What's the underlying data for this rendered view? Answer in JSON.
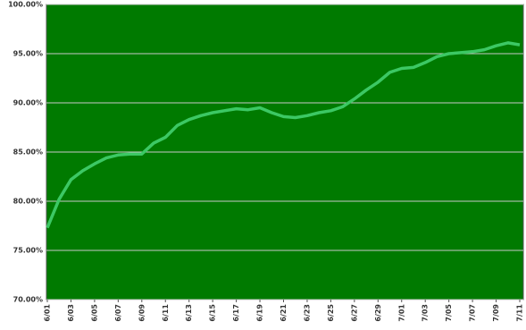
{
  "chart_data": {
    "type": "line",
    "categories": [
      "6/01",
      null,
      "6/03",
      null,
      "6/05",
      null,
      "6/07",
      null,
      "6/09",
      null,
      "6/11",
      null,
      "6/13",
      null,
      "6/15",
      null,
      "6/17",
      null,
      "6/19",
      null,
      "6/21",
      null,
      "6/23",
      null,
      "6/25",
      null,
      "6/27",
      null,
      "6/29",
      null,
      "7/01",
      null,
      "7/03",
      null,
      "7/05",
      null,
      "7/07",
      null,
      "7/09",
      null,
      "7/11"
    ],
    "series": [
      {
        "color": "#3cc864",
        "values": [
          77.3,
          80.2,
          82.2,
          83.1,
          83.8,
          84.4,
          84.7,
          84.8,
          84.8,
          85.9,
          86.5,
          87.7,
          88.3,
          88.7,
          89.0,
          89.2,
          89.4,
          89.3,
          89.5,
          89.0,
          88.6,
          88.5,
          88.7,
          89.0,
          89.2,
          89.6,
          90.4,
          91.3,
          92.1,
          93.1,
          93.5,
          93.6,
          94.1,
          94.7,
          95.0,
          95.1,
          95.2,
          95.4,
          95.8,
          96.1,
          95.9
        ]
      }
    ],
    "ylim": [
      70,
      100
    ],
    "yticks": [
      {
        "value": 70,
        "label": "70.00%"
      },
      {
        "value": 75,
        "label": "75.00%"
      },
      {
        "value": 80,
        "label": "80.00%"
      },
      {
        "value": 85,
        "label": "85.00%"
      },
      {
        "value": 90,
        "label": "90.00%"
      },
      {
        "value": 95,
        "label": "95.00%"
      },
      {
        "value": 100,
        "label": "100.00%"
      }
    ],
    "grid": true,
    "background": "#007a00"
  }
}
